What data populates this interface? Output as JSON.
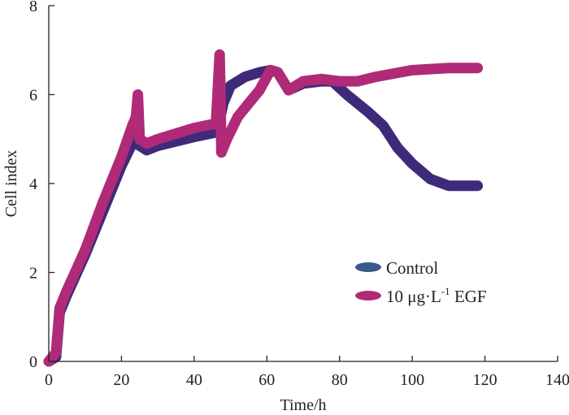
{
  "chart_data": {
    "type": "line",
    "title": "",
    "xlabel": "Time/h",
    "ylabel": "Cell index",
    "xlim": [
      0,
      140
    ],
    "ylim": [
      0,
      8
    ],
    "xticks": [
      "0",
      "20",
      "40",
      "60",
      "80",
      "100",
      "120",
      "140"
    ],
    "yticks": [
      "0",
      "2",
      "4",
      "6",
      "8"
    ],
    "legend_position": "center-right",
    "series": [
      {
        "name": "Control",
        "color": "#3f2a7a",
        "legend_color": "#3b5a8c",
        "x": [
          0,
          2,
          3,
          5,
          10,
          15,
          20,
          23,
          24,
          24.5,
          25,
          27,
          30,
          40,
          46,
          47,
          47.5,
          48,
          50,
          54,
          58,
          61,
          63,
          66,
          70,
          75,
          78,
          82,
          88,
          92,
          96,
          100,
          105,
          110,
          118
        ],
        "y": [
          0,
          0.1,
          1.1,
          1.5,
          2.4,
          3.4,
          4.4,
          4.9,
          5.0,
          5.8,
          4.85,
          4.75,
          4.85,
          5.05,
          5.15,
          6.6,
          5.6,
          5.8,
          6.2,
          6.4,
          6.5,
          6.55,
          6.5,
          6.1,
          6.25,
          6.3,
          6.3,
          6.0,
          5.6,
          5.3,
          4.8,
          4.45,
          4.1,
          3.95,
          3.95
        ]
      },
      {
        "name": "10 μg·L⁻¹ EGF",
        "color": "#b02a78",
        "legend_color": "#b02a78",
        "x": [
          0,
          2,
          3,
          5,
          10,
          15,
          20,
          23,
          24,
          24.5,
          25,
          27,
          30,
          40,
          46,
          47,
          47.5,
          49,
          52,
          55,
          58,
          61,
          63,
          66,
          70,
          75,
          80,
          85,
          90,
          100,
          110,
          118
        ],
        "y": [
          0,
          0.2,
          1.2,
          1.6,
          2.5,
          3.6,
          4.6,
          5.3,
          5.5,
          6.0,
          5.0,
          4.9,
          5.0,
          5.25,
          5.35,
          6.9,
          4.7,
          5.0,
          5.5,
          5.8,
          6.1,
          6.55,
          6.5,
          6.1,
          6.3,
          6.35,
          6.3,
          6.3,
          6.4,
          6.55,
          6.6,
          6.6
        ]
      }
    ],
    "legend": {
      "control": "Control",
      "egf_prefix": "10 μg·L",
      "egf_sup": "-1",
      "egf_suffix": " EGF"
    }
  }
}
